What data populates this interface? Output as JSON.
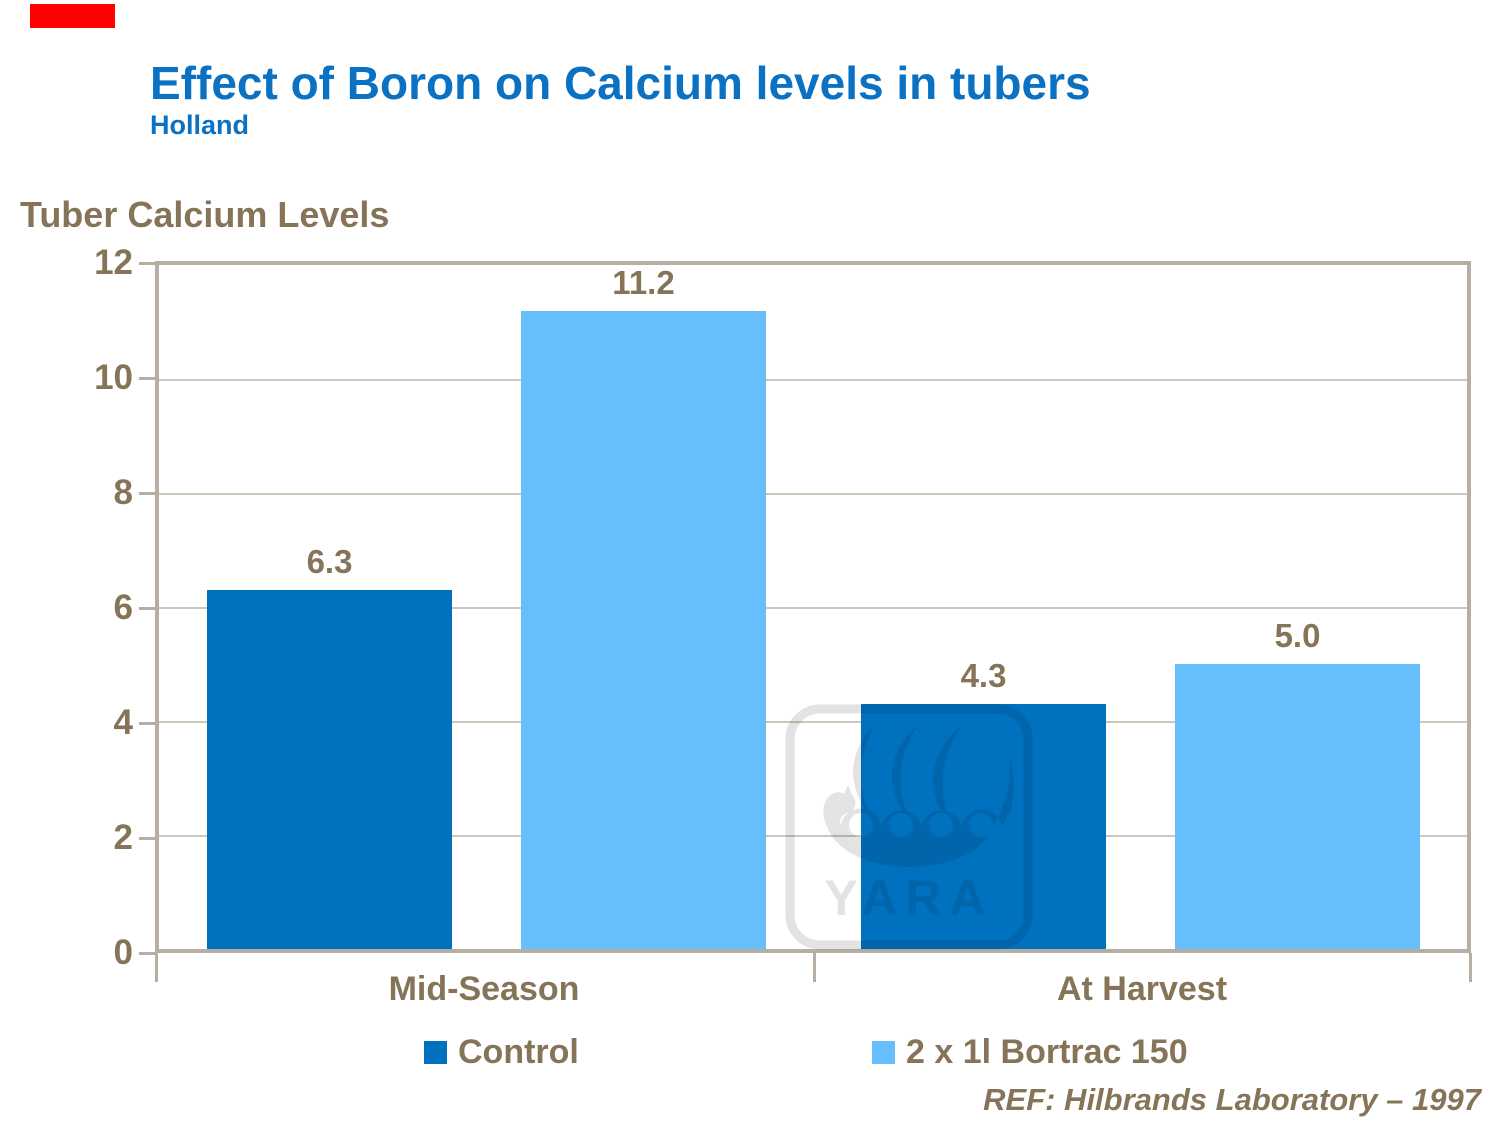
{
  "slide": {
    "title": "Effect of Boron on Calcium levels in tubers",
    "subtitle": "Holland",
    "axis_title": "Tuber Calcium Levels",
    "reference": "REF: Hilbrands Laboratory – 1997"
  },
  "colors": {
    "title_blue": "#0b71c2",
    "text_brown": "#867459",
    "frame": "#b7aea3",
    "gridline": "#d0c7bb",
    "red_marker": "#ff0000",
    "control_bar": "#0071bf",
    "bortrac_bar": "#66bffa",
    "watermark_gray": "#e3e3e3"
  },
  "chart_data": {
    "type": "bar",
    "title": "Tuber Calcium Levels",
    "categories": [
      "Mid-Season",
      "At Harvest"
    ],
    "series": [
      {
        "name": "Control",
        "color": "#0071bf",
        "values": [
          6.3,
          4.3
        ]
      },
      {
        "name": "2 x 1l Bortrac 150",
        "color": "#66bffa",
        "values": [
          11.2,
          5.0
        ]
      }
    ],
    "data_labels": [
      [
        "6.3",
        "4.3"
      ],
      [
        "11.2",
        "5.0"
      ]
    ],
    "ylim": [
      0,
      12
    ],
    "yticks": [
      0,
      2,
      4,
      6,
      8,
      10,
      12
    ],
    "grid": true,
    "legend_position": "bottom"
  },
  "legend": {
    "items": [
      {
        "label": "Control",
        "color": "#0071bf"
      },
      {
        "label": "2 x 1l Bortrac 150",
        "color": "#66bffa"
      }
    ]
  },
  "watermark": {
    "name": "yara-logo",
    "text": "YARA"
  }
}
